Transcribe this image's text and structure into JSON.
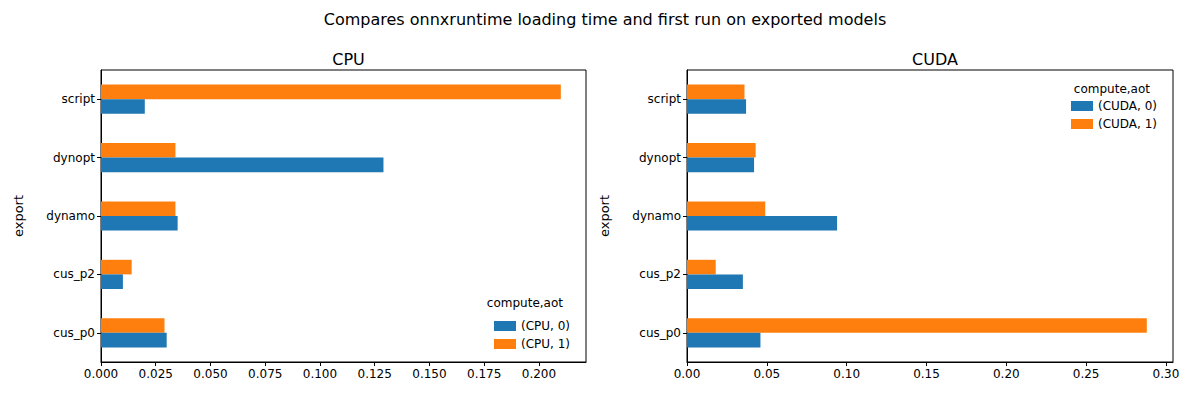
{
  "title": "Compares onnxruntime loading time and first run on exported models",
  "chart_data": [
    {
      "type": "bar",
      "orientation": "horizontal",
      "title": "CPU",
      "ylabel": "export",
      "categories": [
        "cus_p0",
        "cus_p2",
        "dynamo",
        "dynopt",
        "script"
      ],
      "series": [
        {
          "name": "(CPU, 0)",
          "color": "#1f77b4",
          "values": [
            0.03,
            0.01,
            0.035,
            0.129,
            0.02
          ]
        },
        {
          "name": "(CPU, 1)",
          "color": "#ff7f0e",
          "values": [
            0.029,
            0.014,
            0.034,
            0.034,
            0.21
          ]
        }
      ],
      "xlim": [
        0,
        0.2215
      ],
      "xticks": [
        {
          "value": 0,
          "label": "0.000"
        },
        {
          "value": 0.025,
          "label": "0.025"
        },
        {
          "value": 0.05,
          "label": "0.050"
        },
        {
          "value": 0.075,
          "label": "0.075"
        },
        {
          "value": 0.1,
          "label": "0.100"
        },
        {
          "value": 0.125,
          "label": "0.125"
        },
        {
          "value": 0.15,
          "label": "0.150"
        },
        {
          "value": 0.175,
          "label": "0.175"
        },
        {
          "value": 0.2,
          "label": "0.200"
        }
      ],
      "grid": false,
      "legend": "lower right",
      "legend_title": "compute,aot"
    },
    {
      "type": "bar",
      "orientation": "horizontal",
      "title": "CUDA",
      "ylabel": "export",
      "categories": [
        "cus_p0",
        "cus_p2",
        "dynamo",
        "dynopt",
        "script"
      ],
      "series": [
        {
          "name": "(CUDA, 0)",
          "color": "#1f77b4",
          "values": [
            0.046,
            0.035,
            0.094,
            0.042,
            0.037
          ]
        },
        {
          "name": "(CUDA, 1)",
          "color": "#ff7f0e",
          "values": [
            0.288,
            0.018,
            0.049,
            0.043,
            0.036
          ]
        }
      ],
      "xlim": [
        0,
        0.3044
      ],
      "xticks": [
        {
          "value": 0,
          "label": "0.00"
        },
        {
          "value": 0.05,
          "label": "0.05"
        },
        {
          "value": 0.1,
          "label": "0.10"
        },
        {
          "value": 0.15,
          "label": "0.15"
        },
        {
          "value": 0.2,
          "label": "0.20"
        },
        {
          "value": 0.25,
          "label": "0.25"
        },
        {
          "value": 0.3,
          "label": "0.30"
        }
      ],
      "grid": false,
      "legend": "upper right",
      "legend_title": "compute,aot"
    }
  ]
}
